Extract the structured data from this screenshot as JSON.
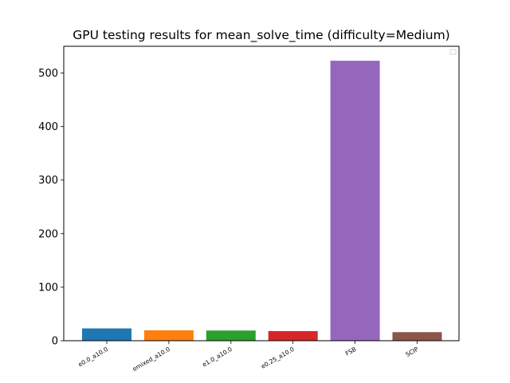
{
  "chart_data": {
    "type": "bar",
    "title": "GPU testing results for mean_solve_time (difficulty=Medium)",
    "xlabel": "",
    "ylabel": "",
    "categories": [
      "e0.0_a10.0",
      "emixed_a10.0",
      "e1.0_a10.0",
      "e0.25_a10.0",
      "FSB",
      "SCIP"
    ],
    "values": [
      23,
      19.5,
      19,
      18,
      523,
      16
    ],
    "colors": [
      "#1f77b4",
      "#ff7f0e",
      "#2ca02c",
      "#d62728",
      "#9467bd",
      "#8c564b"
    ],
    "ylim": [
      0,
      550
    ],
    "yticks": [
      "0",
      "100",
      "200",
      "300",
      "400",
      "500"
    ],
    "grid": false,
    "legend": "top-right"
  }
}
